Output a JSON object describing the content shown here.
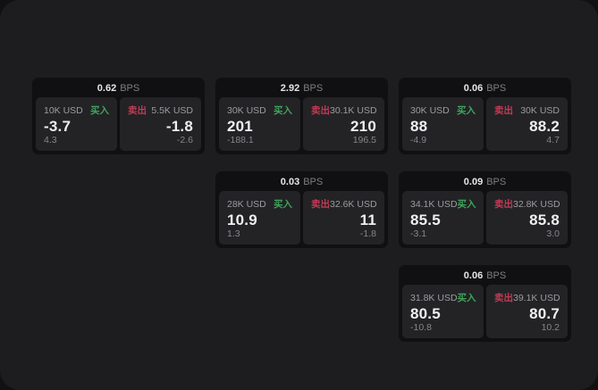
{
  "theme": {
    "page_bg": "#111113",
    "panel_bg": "#1d1d1f",
    "card_bg": "#101012",
    "cell_bg": "#232326",
    "buy_color": "#3fa45c",
    "sell_color": "#c23a54"
  },
  "labels": {
    "bps_unit": "BPS",
    "buy": "买入",
    "sell": "卖出"
  },
  "cards": [
    {
      "bps": "0.62",
      "row": 1,
      "col": 1,
      "buy": {
        "amount": "10K USD",
        "value": "-3.7",
        "delta": "4.3"
      },
      "sell": {
        "amount": "5.5K USD",
        "value": "-1.8",
        "delta": "-2.6"
      }
    },
    {
      "bps": "2.92",
      "row": 1,
      "col": 2,
      "buy": {
        "amount": "30K USD",
        "value": "201",
        "delta": "-188.1"
      },
      "sell": {
        "amount": "30.1K USD",
        "value": "210",
        "delta": "196.5"
      }
    },
    {
      "bps": "0.06",
      "row": 1,
      "col": 3,
      "buy": {
        "amount": "30K USD",
        "value": "88",
        "delta": "-4.9"
      },
      "sell": {
        "amount": "30K USD",
        "value": "88.2",
        "delta": "4.7"
      }
    },
    {
      "bps": "0.03",
      "row": 2,
      "col": 2,
      "buy": {
        "amount": "28K USD",
        "value": "10.9",
        "delta": "1.3"
      },
      "sell": {
        "amount": "32.6K USD",
        "value": "11",
        "delta": "-1.8"
      }
    },
    {
      "bps": "0.09",
      "row": 2,
      "col": 3,
      "buy": {
        "amount": "34.1K USD",
        "value": "85.5",
        "delta": "-3.1"
      },
      "sell": {
        "amount": "32.8K USD",
        "value": "85.8",
        "delta": "3.0"
      }
    },
    {
      "bps": "0.06",
      "row": 3,
      "col": 3,
      "buy": {
        "amount": "31.8K USD",
        "value": "80.5",
        "delta": "-10.8"
      },
      "sell": {
        "amount": "39.1K USD",
        "value": "80.7",
        "delta": "10.2"
      }
    }
  ]
}
